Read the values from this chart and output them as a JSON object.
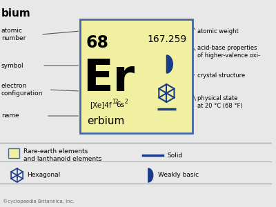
{
  "title": "erbium",
  "page_title": "bium",
  "atomic_number": "68",
  "atomic_weight": "167.259",
  "symbol": "Er",
  "electron_config": "[Xe]4f",
  "electron_config_super1": "12",
  "electron_config_mid": "6s",
  "electron_config_super2": "2",
  "name": "erbium",
  "bg_color": "#f0f0a0",
  "card_border_color": "#4466aa",
  "main_bg": "#e8e8e8",
  "left_labels": [
    "atomic\nnumber",
    "symbol",
    "electron\nconfiguration",
    "name"
  ],
  "right_labels": [
    "atomic weight",
    "acid-base properties\nof higher-valence oxi-",
    "crystal structure",
    "physical state\nat 20 °C (68 °F)"
  ],
  "legend_row1_left_text": "Rare-earth elements\nand lanthanoid elements",
  "legend_row1_right_text": "Solid",
  "legend_row2_left_text": "Hexagonal",
  "legend_row2_right_text": "Weakly basic",
  "footer": "©cyclopaedia Britannica, Inc.",
  "icon_color": "#1a3a8a",
  "text_color": "#000000",
  "line_color": "#555555"
}
